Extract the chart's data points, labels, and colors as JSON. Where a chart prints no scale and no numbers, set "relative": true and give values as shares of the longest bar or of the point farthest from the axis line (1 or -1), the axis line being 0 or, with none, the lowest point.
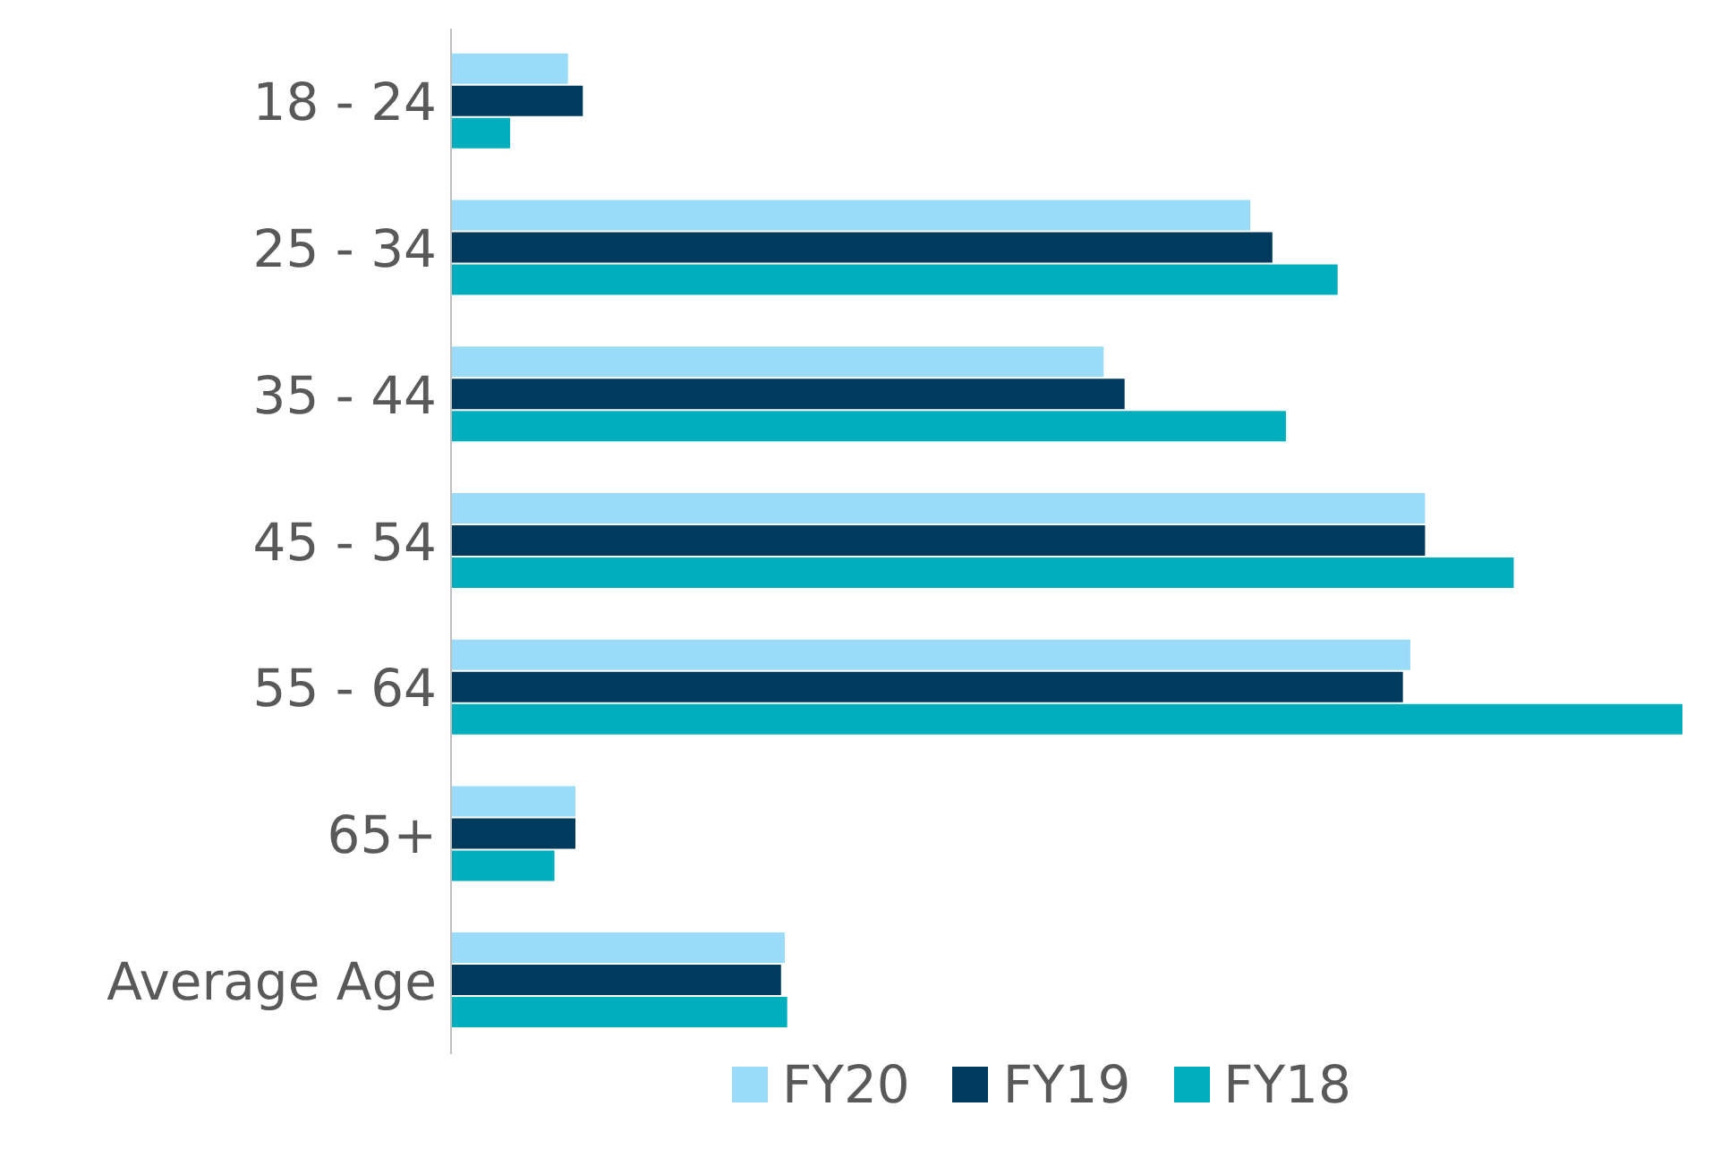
{
  "chart_data": {
    "type": "bar",
    "orientation": "horizontal",
    "relative": true,
    "legend": "bottom",
    "categories": [
      "18 - 24",
      "25 - 34",
      "35 - 44",
      "45 - 54",
      "55 - 64",
      "65+",
      "Average Age"
    ],
    "series": [
      {
        "name": "FY20",
        "color": "#99dbf8",
        "values": [
          0.095,
          0.649,
          0.53,
          0.791,
          0.779,
          0.101,
          0.271
        ]
      },
      {
        "name": "FY19",
        "color": "#003a5d",
        "values": [
          0.107,
          0.667,
          0.547,
          0.791,
          0.773,
          0.101,
          0.268
        ]
      },
      {
        "name": "FY18",
        "color": "#00aebd",
        "values": [
          0.048,
          0.72,
          0.678,
          0.863,
          1,
          0.084,
          0.273
        ]
      }
    ]
  }
}
